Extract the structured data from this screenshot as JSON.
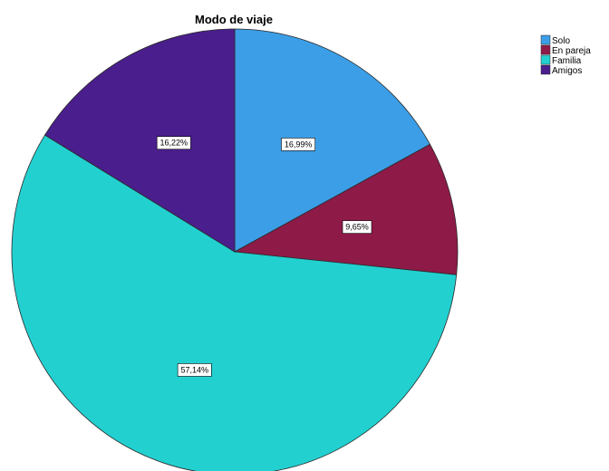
{
  "chart_data": {
    "type": "pie",
    "title": "Modo de viaje",
    "categories": [
      "Solo",
      "En pareja",
      "Familia",
      "Amigos"
    ],
    "values": [
      16.99,
      9.65,
      57.14,
      16.22
    ],
    "labels": [
      "16,99%",
      "9,65%",
      "57,14%",
      "16,22%"
    ],
    "colors": [
      "#3c9ee6",
      "#8e1a48",
      "#22d0d0",
      "#4a1e8c"
    ],
    "start_angle_deg": 0,
    "direction": "clockwise",
    "legend": "top-right"
  }
}
